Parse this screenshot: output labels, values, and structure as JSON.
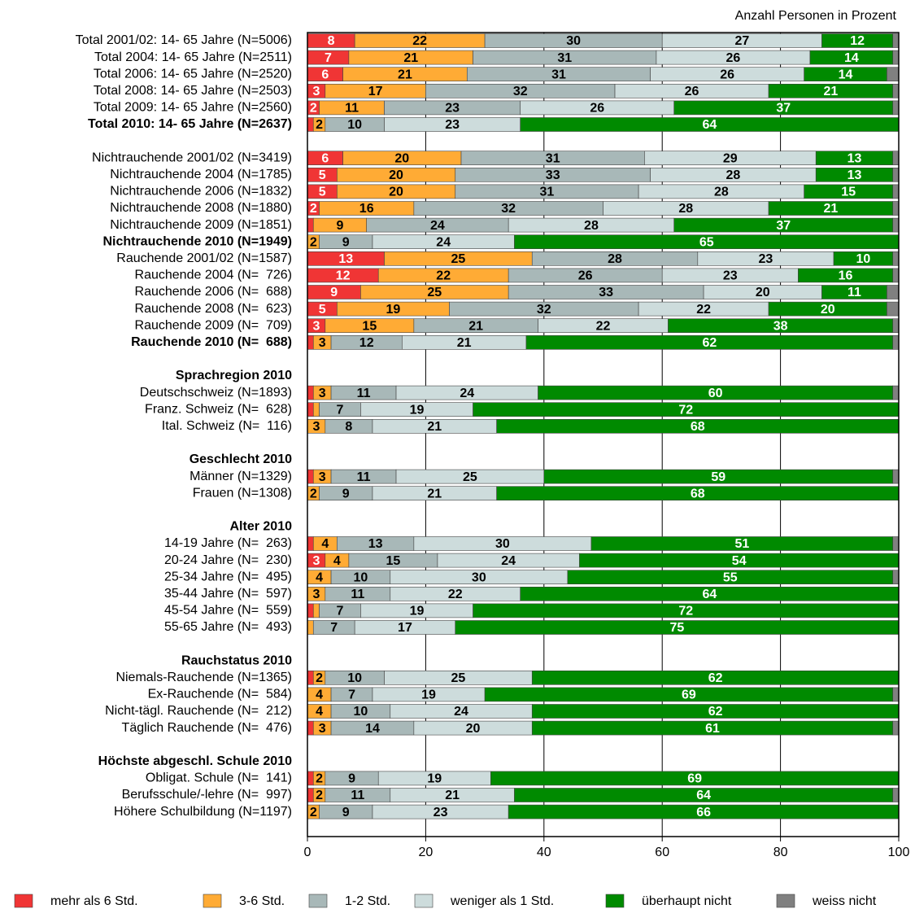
{
  "chart_data": {
    "type": "stacked-barh",
    "subtitle": "Anzahl Personen in Prozent",
    "categories": [
      "Total 2001/02: 14- 65 Jahre (N=5006)",
      "Total 2004: 14- 65 Jahre (N=2511)",
      "Total 2006: 14- 65 Jahre (N=2520)",
      "Total 2008: 14- 65 Jahre (N=2503)",
      "Total 2009: 14- 65 Jahre (N=2560)",
      "Total 2010: 14- 65 Jahre (N=2637)",
      null,
      "Nichtrauchende 2001/02 (N=3419)",
      "Nichtrauchende 2004 (N=1785)",
      "Nichtrauchende 2006 (N=1832)",
      "Nichtrauchende 2008 (N=1880)",
      "Nichtrauchende 2009 (N=1851)",
      "Nichtrauchende 2010 (N=1949)",
      "Rauchende 2001/02 (N=1587)",
      "Rauchende 2004 (N=  726)",
      "Rauchende 2006 (N=  688)",
      "Rauchende 2008 (N=  623)",
      "Rauchende 2009 (N=  709)",
      "Rauchende 2010 (N=  688)",
      null,
      "Sprachregion 2010",
      "Deutschschweiz (N=1893)",
      "Franz. Schweiz (N=  628)",
      "Ital. Schweiz (N=  116)",
      null,
      "Geschlecht 2010",
      "Männer (N=1329)",
      "Frauen (N=1308)",
      null,
      "Alter 2010",
      "14-19 Jahre (N=  263)",
      "20-24 Jahre (N=  230)",
      "25-34 Jahre (N=  495)",
      "35-44 Jahre (N=  597)",
      "45-54 Jahre (N=  559)",
      "55-65 Jahre (N=  493)",
      null,
      "Rauchstatus 2010",
      "Niemals-Rauchende (N=1365)",
      "Ex-Rauchende (N=  584)",
      "Nicht-tägl. Rauchende (N=  212)",
      "Täglich Rauchende (N=  476)",
      null,
      "Höchste abgeschl. Schule 2010",
      "Obligat. Schule (N=  141)",
      "Berufsschule/-lehre (N=  997)",
      "Höhere Schulbildung (N=1197)"
    ],
    "bold_rows": [
      5,
      12,
      18,
      20,
      25,
      29,
      37,
      43
    ],
    "series": [
      {
        "name": "mehr als 6 Std.",
        "color": "#f03535",
        "label_color": "#ffffff",
        "values": [
          8,
          7,
          6,
          3,
          2,
          1,
          null,
          6,
          5,
          5,
          2,
          1,
          0,
          13,
          12,
          9,
          5,
          3,
          1,
          null,
          null,
          1,
          1,
          0,
          null,
          null,
          1,
          0,
          null,
          null,
          1,
          3,
          0,
          0,
          1,
          0,
          null,
          null,
          1,
          0,
          0,
          1,
          null,
          null,
          1,
          1,
          0
        ]
      },
      {
        "name": "3-6 Std.",
        "color": "#ffab35",
        "label_color": "#000000",
        "values": [
          22,
          21,
          21,
          17,
          11,
          2,
          null,
          20,
          20,
          20,
          16,
          9,
          2,
          25,
          22,
          25,
          19,
          15,
          3,
          null,
          null,
          3,
          1,
          3,
          null,
          null,
          3,
          2,
          null,
          null,
          4,
          4,
          4,
          3,
          1,
          1,
          null,
          null,
          2,
          4,
          4,
          3,
          null,
          null,
          2,
          2,
          2
        ]
      },
      {
        "name": "1-2 Std.",
        "color": "#a8b8b8",
        "label_color": "#000000",
        "values": [
          30,
          31,
          31,
          32,
          23,
          10,
          null,
          31,
          33,
          31,
          32,
          24,
          9,
          28,
          26,
          33,
          32,
          21,
          12,
          null,
          null,
          11,
          7,
          8,
          null,
          null,
          11,
          9,
          null,
          null,
          13,
          15,
          10,
          11,
          7,
          7,
          null,
          null,
          10,
          7,
          10,
          14,
          null,
          null,
          9,
          11,
          9
        ]
      },
      {
        "name": "weniger als 1 Std.",
        "color": "#cddcdc",
        "label_color": "#000000",
        "values": [
          27,
          26,
          26,
          26,
          26,
          23,
          null,
          29,
          28,
          28,
          28,
          28,
          24,
          23,
          23,
          20,
          22,
          22,
          21,
          null,
          null,
          24,
          19,
          21,
          null,
          null,
          25,
          21,
          null,
          null,
          30,
          24,
          30,
          22,
          19,
          17,
          null,
          null,
          25,
          19,
          24,
          20,
          null,
          null,
          19,
          21,
          23
        ]
      },
      {
        "name": "überhaupt nicht",
        "color": "#008a00",
        "label_color": "#ffffff",
        "values": [
          12,
          14,
          14,
          21,
          37,
          64,
          null,
          13,
          13,
          15,
          21,
          37,
          65,
          10,
          16,
          11,
          20,
          38,
          62,
          null,
          null,
          60,
          72,
          68,
          null,
          null,
          59,
          68,
          null,
          null,
          51,
          54,
          55,
          64,
          72,
          75,
          null,
          null,
          62,
          69,
          62,
          61,
          null,
          null,
          69,
          64,
          66
        ]
      },
      {
        "name": "weiss nicht",
        "color": "#808080",
        "label_color": null,
        "values": [
          1,
          1,
          2,
          1,
          1,
          0,
          null,
          1,
          1,
          1,
          1,
          1,
          0,
          1,
          1,
          2,
          2,
          1,
          1,
          null,
          null,
          1,
          0,
          0,
          null,
          null,
          1,
          0,
          null,
          null,
          1,
          0,
          1,
          0,
          0,
          0,
          null,
          null,
          0,
          1,
          0,
          1,
          null,
          null,
          0,
          1,
          0
        ]
      }
    ],
    "xlim": [
      0,
      100
    ],
    "xticks": [
      0,
      20,
      40,
      60,
      80,
      100
    ],
    "grid": true
  }
}
